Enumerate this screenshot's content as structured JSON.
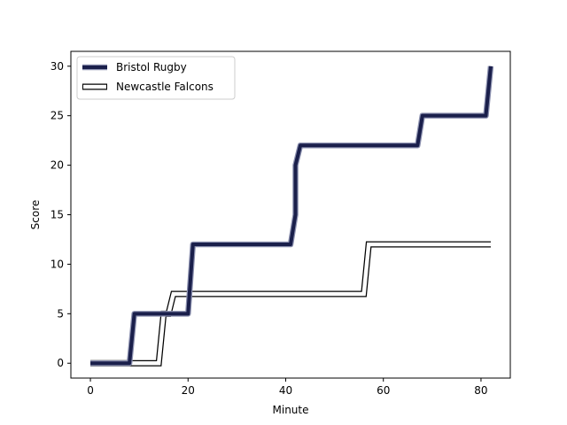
{
  "chart_data": {
    "type": "line",
    "title": "",
    "xlabel": "Minute",
    "ylabel": "Score",
    "xlim": [
      -4,
      86
    ],
    "ylim": [
      -1.5,
      31.5
    ],
    "xticks": [
      0,
      20,
      40,
      60,
      80
    ],
    "yticks": [
      0,
      5,
      10,
      15,
      20,
      25,
      30
    ],
    "grid": false,
    "legend_position": "upper-left",
    "series": [
      {
        "name": "Bristol Rugby",
        "color": "#1a1f4b",
        "style": "thick-solid",
        "x": [
          0,
          8,
          9,
          20,
          21,
          41,
          42,
          42,
          43,
          67,
          68,
          81,
          82
        ],
        "y": [
          0,
          0,
          5,
          5,
          12,
          12,
          15,
          20,
          22,
          22,
          25,
          25,
          30
        ]
      },
      {
        "name": "Newcastle Falcons",
        "color": "#000000",
        "style": "outlined-white",
        "x": [
          0,
          14,
          15,
          16,
          17,
          56,
          57,
          82
        ],
        "y": [
          0,
          0,
          5,
          5,
          7,
          7,
          12,
          12
        ]
      }
    ]
  }
}
